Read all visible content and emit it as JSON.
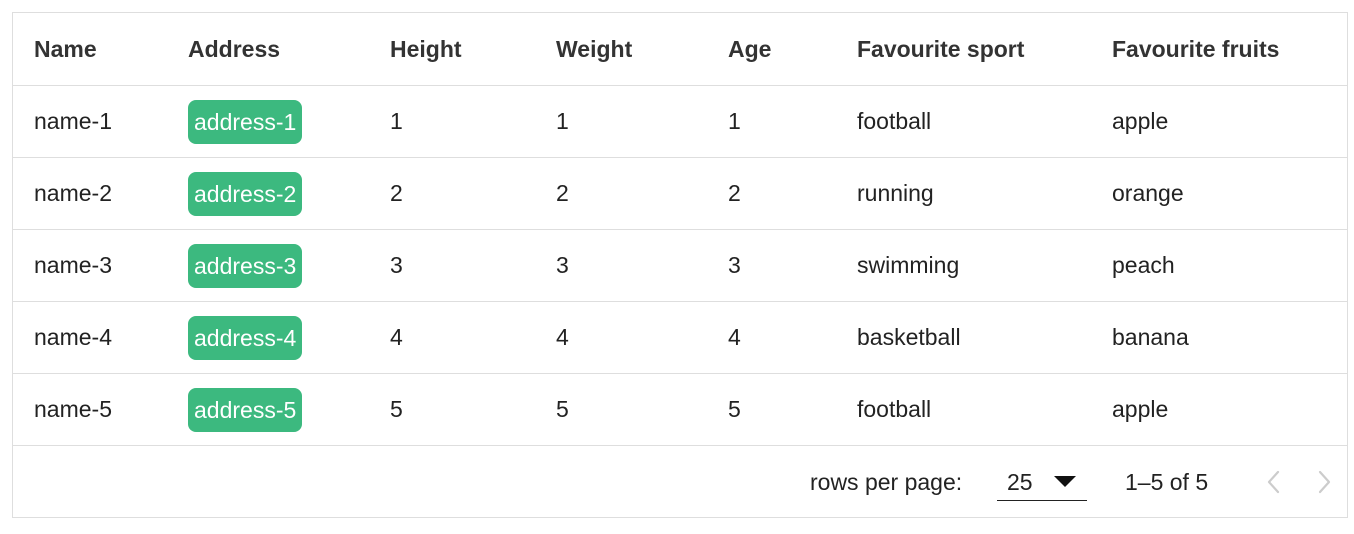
{
  "table": {
    "headers": {
      "name": "Name",
      "address": "Address",
      "height": "Height",
      "weight": "Weight",
      "age": "Age",
      "sport": "Favourite sport",
      "fruit": "Favourite fruits"
    },
    "rows": [
      {
        "name": "name-1",
        "address": "address-1",
        "height": "1",
        "weight": "1",
        "age": "1",
        "sport": "football",
        "fruit": "apple"
      },
      {
        "name": "name-2",
        "address": "address-2",
        "height": "2",
        "weight": "2",
        "age": "2",
        "sport": "running",
        "fruit": "orange"
      },
      {
        "name": "name-3",
        "address": "address-3",
        "height": "3",
        "weight": "3",
        "age": "3",
        "sport": "swimming",
        "fruit": "peach"
      },
      {
        "name": "name-4",
        "address": "address-4",
        "height": "4",
        "weight": "4",
        "age": "4",
        "sport": "basketball",
        "fruit": "banana"
      },
      {
        "name": "name-5",
        "address": "address-5",
        "height": "5",
        "weight": "5",
        "age": "5",
        "sport": "football",
        "fruit": "apple"
      }
    ]
  },
  "footer": {
    "rows_per_page_label": "rows per page:",
    "rows_per_page_value": "25",
    "page_range": "1–5 of 5",
    "prev_icon": "chevron-left-icon",
    "next_icon": "chevron-right-icon"
  },
  "colors": {
    "chip_background": "#3cb97f",
    "chip_text": "#ffffff",
    "border": "#dedede",
    "nav_disabled": "#cccccc"
  }
}
